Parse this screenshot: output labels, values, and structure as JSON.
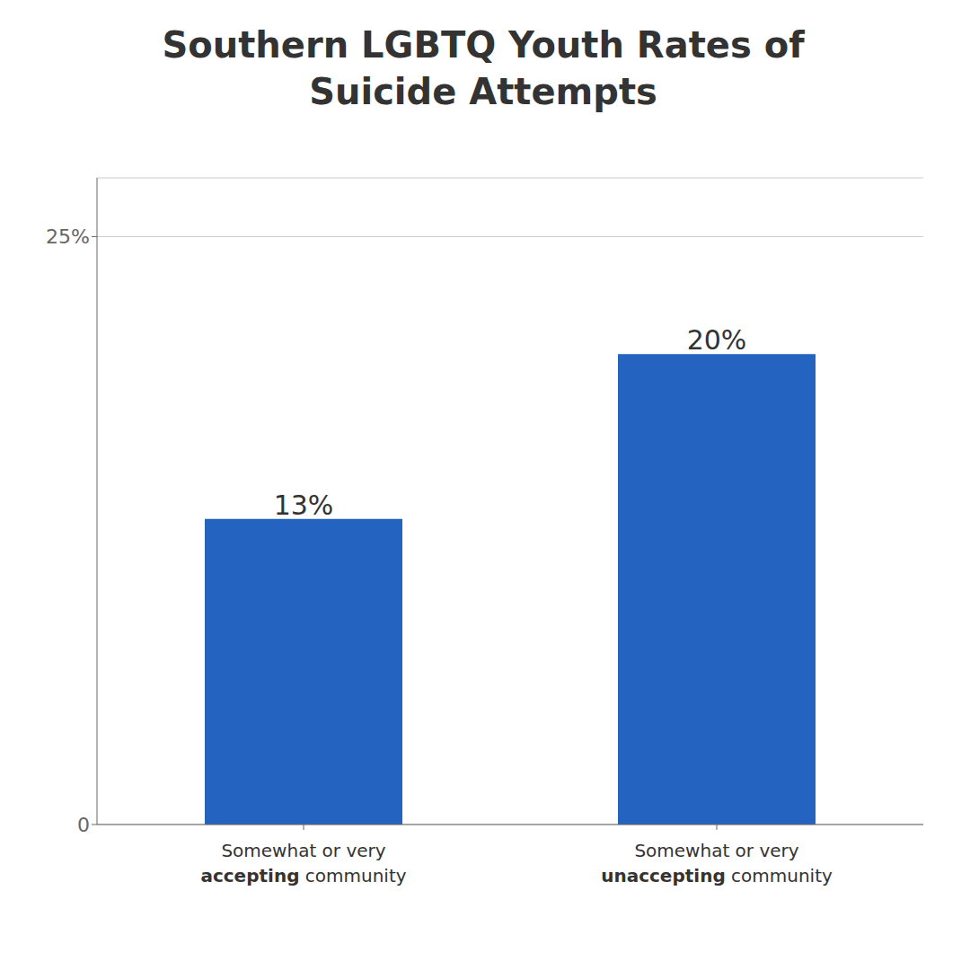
{
  "chart_data": {
    "type": "bar",
    "title": "Southern LGBTQ Youth Rates of\nSuicide Attempts",
    "categories": [
      "Somewhat or very accepting community",
      "Somewhat or very unaccepting community"
    ],
    "values": [
      13,
      20
    ],
    "value_labels": [
      "13%",
      "20%"
    ],
    "data_labels": true,
    "color": "#2563c0",
    "ylim": [
      0,
      27.5
    ],
    "yticks": [
      0,
      {
        "value": 25,
        "label": "25%"
      }
    ],
    "grid": true
  }
}
